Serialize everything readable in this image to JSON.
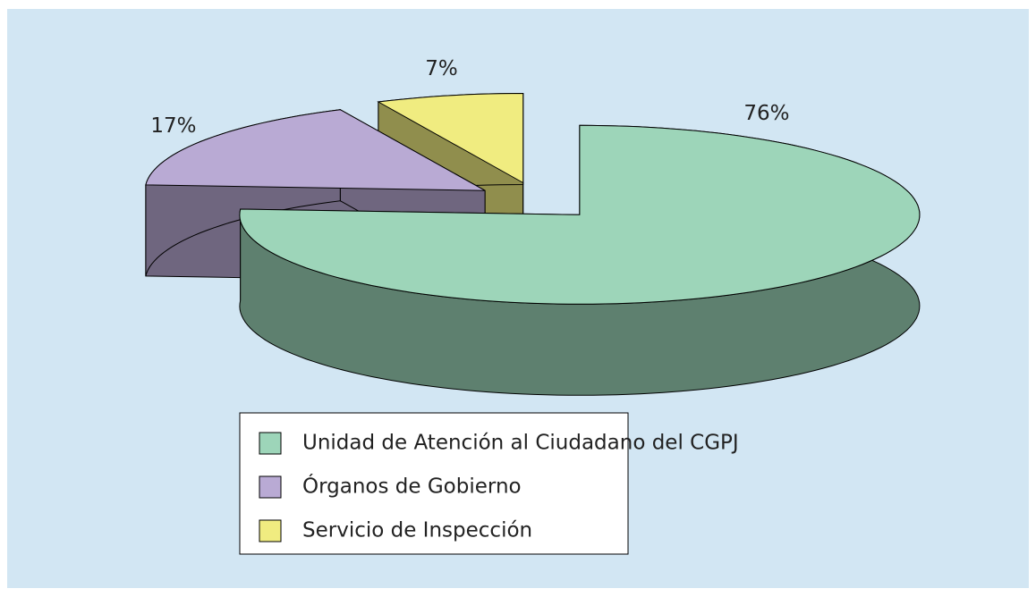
{
  "chart_data": {
    "type": "pie",
    "categories": [
      "Unidad de Atención al Ciudadano del CGPJ",
      "Órganos de Gobierno",
      "Servicio de Inspección"
    ],
    "values": [
      76,
      17,
      7
    ],
    "value_labels": [
      "76%",
      "17%",
      "7%"
    ],
    "colors": [
      "#9dd5b9",
      "#b9aad4",
      "#f0ec80"
    ],
    "legend": "bottom"
  }
}
